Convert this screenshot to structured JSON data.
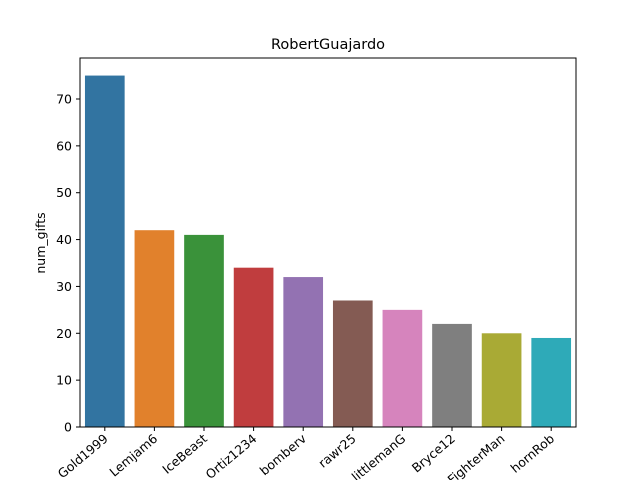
{
  "chart_data": {
    "type": "bar",
    "title": "RobertGuajardo",
    "xlabel": "",
    "ylabel": "num_gifts",
    "categories": [
      "Gold1999",
      "Lemjam6",
      "IceBeast",
      "Ortiz1234",
      "bomberv",
      "rawr25",
      "littlemanG",
      "Bryce12",
      "FighterMan",
      "hornRob"
    ],
    "values": [
      75,
      42,
      41,
      34,
      32,
      27,
      25,
      22,
      20,
      19
    ],
    "colors": [
      "#3274a1",
      "#e1812c",
      "#3a923a",
      "#c03d3e",
      "#9372b2",
      "#845b53",
      "#d684bd",
      "#7f7f7f",
      "#a9aa35",
      "#2eaab8"
    ],
    "ylim": [
      0,
      78.75
    ],
    "yticks": [
      0,
      10,
      20,
      30,
      40,
      50,
      60,
      70
    ],
    "grid": false,
    "legend": "none"
  }
}
